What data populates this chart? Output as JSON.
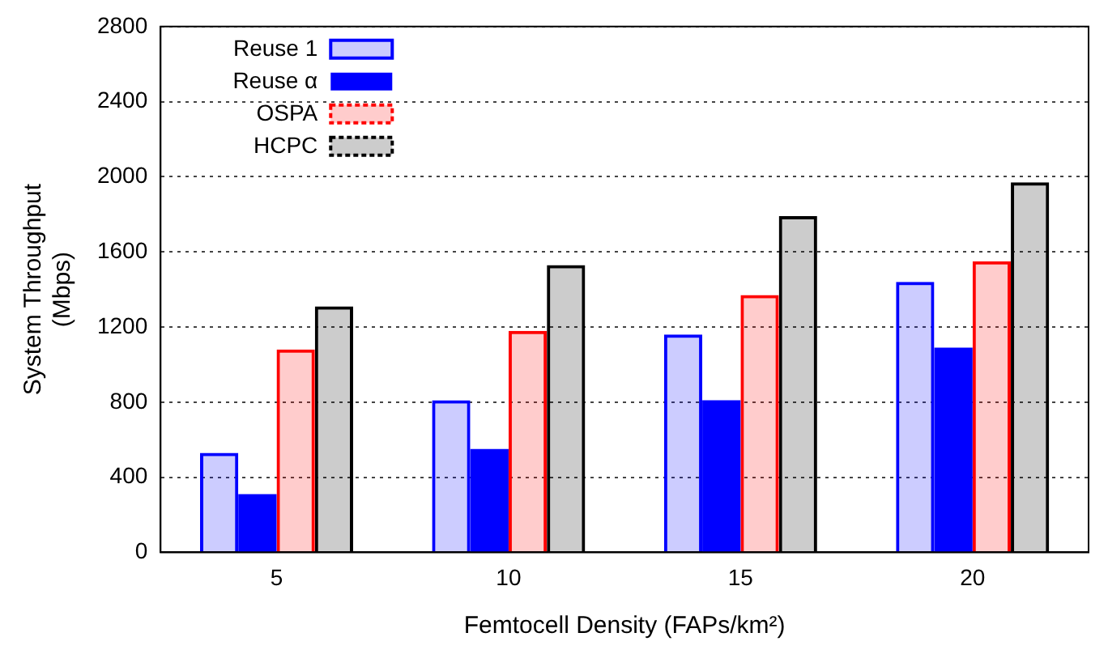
{
  "chart_data": {
    "type": "bar",
    "xlabel": "Femtocell Density (FAPs/km²)",
    "ylabel": "System Throughput\n(Mbps)",
    "categories": [
      "5",
      "10",
      "15",
      "20"
    ],
    "series": [
      {
        "name": "Reuse 1",
        "color": "#0000ff",
        "values": [
          530,
          810,
          1160,
          1440
        ]
      },
      {
        "name": "Reuse α",
        "color": "#0000ff",
        "values": [
          310,
          550,
          810,
          1090
        ]
      },
      {
        "name": "OSPA",
        "color": "#ff0000",
        "values": [
          1080,
          1180,
          1370,
          1550
        ]
      },
      {
        "name": "HCPC",
        "color": "#000000",
        "values": [
          1310,
          1530,
          1790,
          1970
        ]
      }
    ],
    "ylim": [
      0,
      2800
    ],
    "yticks": [
      0,
      400,
      800,
      1200,
      1600,
      2000,
      2400,
      2800
    ],
    "grid": "y",
    "legend": "top left"
  }
}
